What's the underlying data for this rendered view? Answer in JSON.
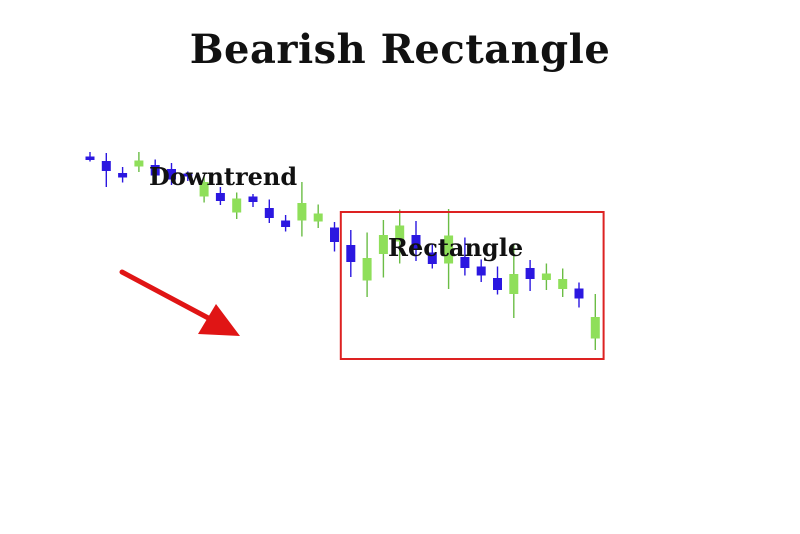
{
  "title": "Bearish Rectangle",
  "annotations": {
    "downtrend": "Downtrend",
    "rectangle": "Rectangle"
  },
  "colors": {
    "bullish": "#8fdf5a",
    "bearish": "#2b17e0",
    "wick_bullish": "#6bbd45",
    "wick_bearish": "#2b17e0",
    "box": "#dd2222",
    "arrow": "#e01515"
  },
  "chart_data": {
    "type": "candlestick",
    "title": "Bearish Rectangle",
    "xlabel": "",
    "ylabel": "",
    "axes_visible": false,
    "grid": false,
    "rectangle_zone": {
      "first_candle": 16,
      "last_candle": 32
    },
    "candles": [
      {
        "i": 0,
        "open": 88.7,
        "close": 88.0,
        "high": 89.6,
        "low": 87.7
      },
      {
        "i": 1,
        "open": 87.8,
        "close": 85.8,
        "high": 89.4,
        "low": 82.6
      },
      {
        "i": 2,
        "open": 85.4,
        "close": 84.5,
        "high": 86.6,
        "low": 83.5
      },
      {
        "i": 3,
        "open": 86.7,
        "close": 87.9,
        "high": 89.6,
        "low": 85.6
      },
      {
        "i": 4,
        "open": 87.0,
        "close": 84.9,
        "high": 88.1,
        "low": 83.6
      },
      {
        "i": 5,
        "open": 86.2,
        "close": 84.1,
        "high": 87.4,
        "low": 83.0
      },
      {
        "i": 6,
        "open": 85.3,
        "close": 84.8,
        "high": 85.7,
        "low": 83.8
      },
      {
        "i": 7,
        "open": 80.7,
        "close": 83.6,
        "high": 84.7,
        "low": 79.5
      },
      {
        "i": 8,
        "open": 81.4,
        "close": 79.8,
        "high": 82.6,
        "low": 79.0
      },
      {
        "i": 9,
        "open": 77.5,
        "close": 80.3,
        "high": 81.5,
        "low": 76.2
      },
      {
        "i": 10,
        "open": 80.7,
        "close": 79.6,
        "high": 81.2,
        "low": 78.6
      },
      {
        "i": 11,
        "open": 78.4,
        "close": 76.4,
        "high": 80.1,
        "low": 75.4
      },
      {
        "i": 12,
        "open": 75.9,
        "close": 74.6,
        "high": 77.0,
        "low": 73.7
      },
      {
        "i": 13,
        "open": 75.9,
        "close": 79.4,
        "high": 83.6,
        "low": 72.7
      },
      {
        "i": 14,
        "open": 75.7,
        "close": 77.3,
        "high": 79.1,
        "low": 74.4
      },
      {
        "i": 15,
        "open": 74.5,
        "close": 71.6,
        "high": 75.6,
        "low": 69.7
      },
      {
        "i": 16,
        "open": 71.0,
        "close": 67.6,
        "high": 74.0,
        "low": 64.6
      },
      {
        "i": 17,
        "open": 63.9,
        "close": 68.4,
        "high": 73.5,
        "low": 60.6
      },
      {
        "i": 18,
        "open": 69.2,
        "close": 73.0,
        "high": 76.0,
        "low": 64.5
      },
      {
        "i": 19,
        "open": 71.7,
        "close": 74.9,
        "high": 78.1,
        "low": 67.3
      },
      {
        "i": 20,
        "open": 73.0,
        "close": 70.0,
        "high": 75.8,
        "low": 67.8
      },
      {
        "i": 21,
        "open": 69.5,
        "close": 67.2,
        "high": 71.2,
        "low": 66.3
      },
      {
        "i": 22,
        "open": 67.3,
        "close": 72.9,
        "high": 78.2,
        "low": 62.2
      },
      {
        "i": 23,
        "open": 68.6,
        "close": 66.4,
        "high": 72.5,
        "low": 64.9
      },
      {
        "i": 24,
        "open": 66.7,
        "close": 64.9,
        "high": 68.1,
        "low": 63.6
      },
      {
        "i": 25,
        "open": 64.4,
        "close": 62.0,
        "high": 66.7,
        "low": 61.1
      },
      {
        "i": 26,
        "open": 61.2,
        "close": 65.2,
        "high": 71.1,
        "low": 56.4
      },
      {
        "i": 27,
        "open": 66.4,
        "close": 64.2,
        "high": 68.0,
        "low": 61.8
      },
      {
        "i": 28,
        "open": 64.0,
        "close": 65.3,
        "high": 67.3,
        "low": 62.0
      },
      {
        "i": 29,
        "open": 62.2,
        "close": 64.2,
        "high": 66.3,
        "low": 60.6
      },
      {
        "i": 30,
        "open": 62.3,
        "close": 60.3,
        "high": 63.5,
        "low": 58.5
      },
      {
        "i": 31,
        "open": 52.3,
        "close": 56.6,
        "high": 61.2,
        "low": 50.0
      }
    ]
  }
}
